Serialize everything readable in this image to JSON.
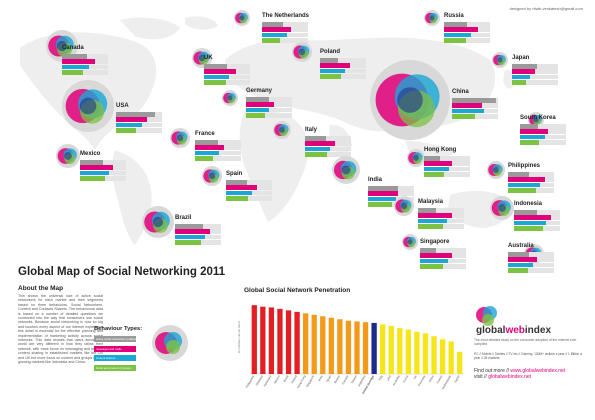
{
  "credit": "designed by ritwik.venkatesh@gmail.com",
  "title": "Global Map of Social Networking 2011",
  "about": {
    "heading": "About the Map",
    "text": "This shows the universal size of active social networkers for each market and their segments based on three behaviours. Social Networkers, Content and Contacts Sharers. The behavioural data is based on a number of detailed questions we conducted into the way that consumers use social networks. Because social networking is now so big and touches every aspect of our internet experience this detail is essential for the effective planning and implementation of marketing activity across social networks. This data reveals that users across the world are very different in how they utilise their network, with more focus on messaging and less on content sharing in established markets like the US and UK but more focus on content and groups in fast growing markets like Indonesia and China."
  },
  "legend": {
    "heading": "Behaviour Types:",
    "items": [
      {
        "label": "active social networkers (millions)",
        "color": "#9a9a9a"
      },
      {
        "label": "messages and mails",
        "color": "#e2007a"
      },
      {
        "label": "content sharers",
        "color": "#1aa7d6"
      },
      {
        "label": "brand and product of groups",
        "color": "#7cc243"
      }
    ]
  },
  "colors": {
    "gray": "#9a9a9a",
    "magenta": "#e2007a",
    "navy": "#1b2a8c",
    "cyan": "#1aa7d6",
    "green": "#7cc243"
  },
  "countries": [
    {
      "name": "Canada",
      "values": [
        0.55,
        0.72,
        0.58,
        0.45
      ]
    },
    {
      "name": "UK",
      "values": [
        0.5,
        0.7,
        0.55,
        0.48
      ]
    },
    {
      "name": "The Netherlands",
      "values": [
        0.45,
        0.62,
        0.55,
        0.4
      ]
    },
    {
      "name": "Germany",
      "values": [
        0.5,
        0.6,
        0.5,
        0.42
      ]
    },
    {
      "name": "Poland",
      "values": [
        0.4,
        0.66,
        0.55,
        0.46
      ]
    },
    {
      "name": "Russia",
      "values": [
        0.5,
        0.74,
        0.58,
        0.48
      ]
    },
    {
      "name": "Japan",
      "values": [
        0.55,
        0.5,
        0.4,
        0.3
      ]
    },
    {
      "name": "USA",
      "values": [
        0.85,
        0.68,
        0.56,
        0.44
      ]
    },
    {
      "name": "France",
      "values": [
        0.5,
        0.62,
        0.52,
        0.4
      ]
    },
    {
      "name": "Italy",
      "values": [
        0.45,
        0.66,
        0.55,
        0.48
      ]
    },
    {
      "name": "China",
      "values": [
        0.95,
        0.65,
        0.7,
        0.5
      ]
    },
    {
      "name": "South Korea",
      "values": [
        0.4,
        0.6,
        0.55,
        0.42
      ]
    },
    {
      "name": "Hong Kong",
      "values": [
        0.35,
        0.6,
        0.54,
        0.44
      ]
    },
    {
      "name": "Spain",
      "values": [
        0.45,
        0.68,
        0.56,
        0.48
      ]
    },
    {
      "name": "India",
      "values": [
        0.65,
        0.66,
        0.6,
        0.52
      ]
    },
    {
      "name": "Mexico",
      "values": [
        0.5,
        0.72,
        0.62,
        0.55
      ]
    },
    {
      "name": "Philippines",
      "values": [
        0.45,
        0.8,
        0.7,
        0.6
      ]
    },
    {
      "name": "Malaysia",
      "values": [
        0.4,
        0.74,
        0.64,
        0.55
      ]
    },
    {
      "name": "Brazil",
      "values": [
        0.6,
        0.76,
        0.66,
        0.56
      ]
    },
    {
      "name": "Indonesia",
      "values": [
        0.5,
        0.8,
        0.7,
        0.62
      ]
    },
    {
      "name": "Singapore",
      "values": [
        0.35,
        0.7,
        0.6,
        0.5
      ]
    },
    {
      "name": "Australia",
      "values": [
        0.45,
        0.64,
        0.54,
        0.44
      ]
    }
  ],
  "chart_data": {
    "type": "bar",
    "title": "Global Social Network Penetration",
    "ylabel": "% of Active Internet Users",
    "ylim": [
      0,
      100
    ],
    "categories": [
      "Philippines",
      "Malaysia",
      "Indonesia",
      "Mexico",
      "Brazil",
      "Poland",
      "Hong Kong",
      "Singapore",
      "India",
      "Spain",
      "Russia",
      "Canada",
      "Taiwan",
      "Argentina",
      "Global Average",
      "Italy",
      "USA",
      "Australia",
      "Korea",
      "UK",
      "Germany",
      "China",
      "France",
      "Netherlands",
      "Japan"
    ],
    "values": [
      93,
      91,
      90,
      88,
      86,
      84,
      82,
      80,
      78,
      76,
      74,
      72,
      71,
      70,
      69,
      67,
      65,
      62,
      60,
      57,
      55,
      51,
      47,
      44,
      30
    ],
    "highlight": "Global Average",
    "bar_colors": {
      "high": "#e31f26",
      "mid": "#f39a1b",
      "low": "#f5e61a",
      "average": "#1b2a8c"
    }
  },
  "gwi": {
    "logo": {
      "a": "global",
      "b": "web",
      "c": "index"
    },
    "intro": "The most detailed study on the consumer adoption of the internet ever compiled",
    "stats": "PC // Mobile // Tablets // TV etc // Gaming. 100M+ visitors a year // 1 Billion a year // 28 markets",
    "find_more": "Find out more",
    "url": "www.globalwebindex.net",
    "visit_label": "visit",
    "visit_url": "globalwebindex.net"
  }
}
